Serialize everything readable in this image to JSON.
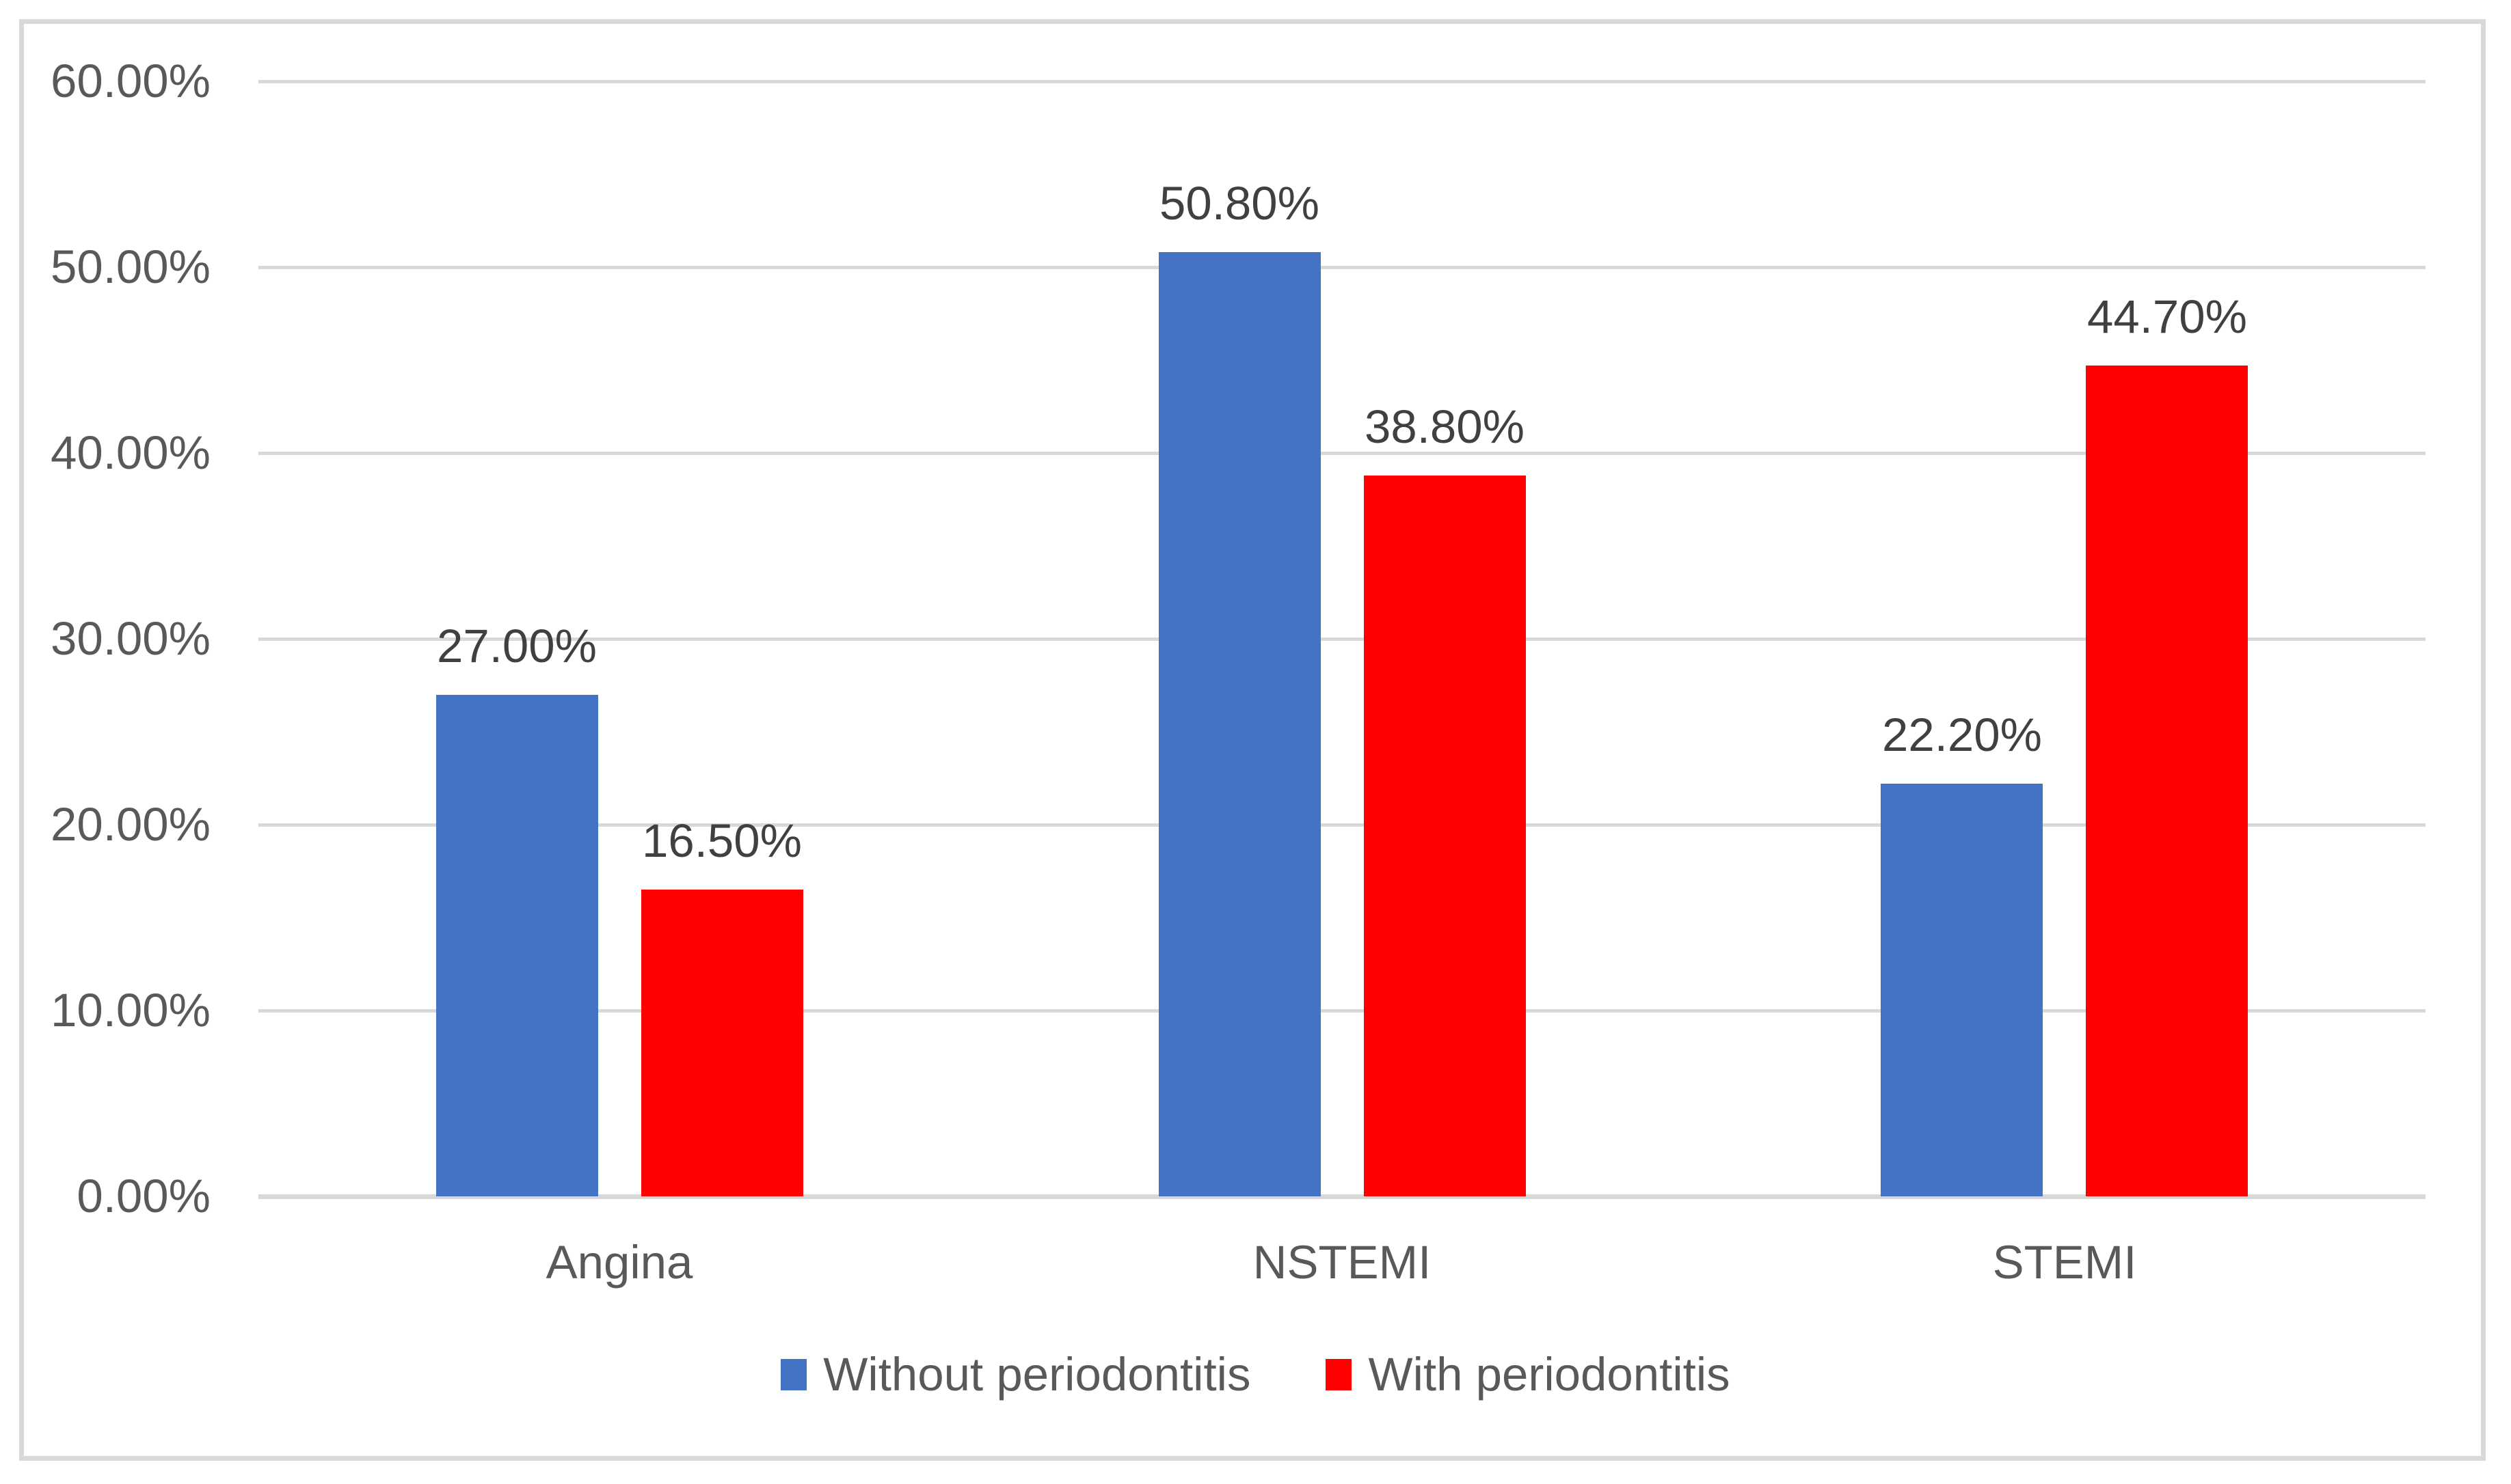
{
  "chart_data": {
    "type": "bar",
    "categories": [
      "Angina",
      "NSTEMI",
      "STEMI"
    ],
    "series": [
      {
        "name": "Without periodontitis",
        "color": "#4472C4",
        "values": [
          27.0,
          50.8,
          22.2
        ],
        "labels": [
          "27.00%",
          "50.80%",
          "22.20%"
        ]
      },
      {
        "name": "With periodontitis",
        "color": "#FF0000",
        "values": [
          16.5,
          38.8,
          44.7
        ],
        "labels": [
          "16.50%",
          "38.80%",
          "44.70%"
        ]
      }
    ],
    "y_axis": {
      "min": 0,
      "max": 60,
      "ticks": [
        {
          "value": 0,
          "label": "0.00%"
        },
        {
          "value": 10,
          "label": "10.00%"
        },
        {
          "value": 20,
          "label": "20.00%"
        },
        {
          "value": 30,
          "label": "30.00%"
        },
        {
          "value": 40,
          "label": "40.00%"
        },
        {
          "value": 50,
          "label": "50.00%"
        },
        {
          "value": 60,
          "label": "60.00%"
        }
      ]
    },
    "grid": true,
    "legend_position": "bottom",
    "styles": {
      "background": "#FFFFFF",
      "frame_color": "#D9D9D9",
      "grid_color": "#D9D9D9",
      "axis_text_color": "#595959",
      "data_label_color": "#404040"
    }
  }
}
